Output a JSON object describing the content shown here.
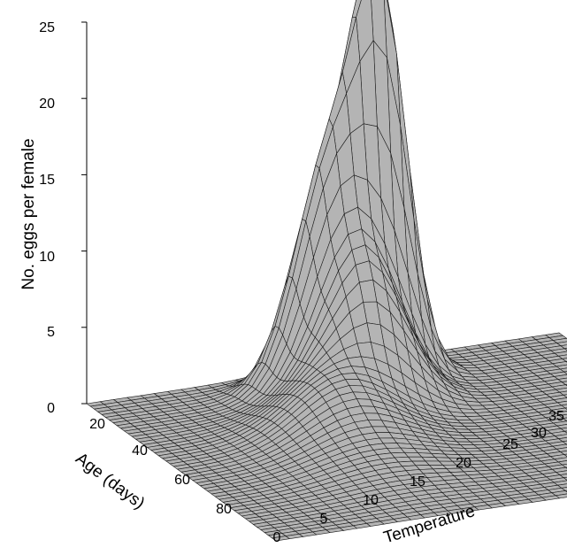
{
  "chart_data": {
    "type": "surface3d",
    "title": "",
    "zlabel": "No. eggs per female",
    "xlabel": "Temperature",
    "ylabel": "Age (days)",
    "z_ticks": [
      "0",
      "5",
      "10",
      "15",
      "20",
      "25"
    ],
    "temperature_ticks": [
      "0",
      "5",
      "10",
      "15",
      "20",
      "25",
      "30",
      "35"
    ],
    "age_ticks": [
      "20",
      "40",
      "60",
      "80"
    ],
    "zlim": [
      0,
      25
    ],
    "temperature_range": [
      0,
      35
    ],
    "age_range": [
      0,
      100
    ],
    "peaks": [
      {
        "temperature": 20,
        "age": 12,
        "eggs": 23.5
      },
      {
        "temperature": 16,
        "age": 14,
        "eggs": 13.5
      }
    ],
    "surface_color": "#b4b4b4",
    "line_color": "#1a1a1a"
  }
}
